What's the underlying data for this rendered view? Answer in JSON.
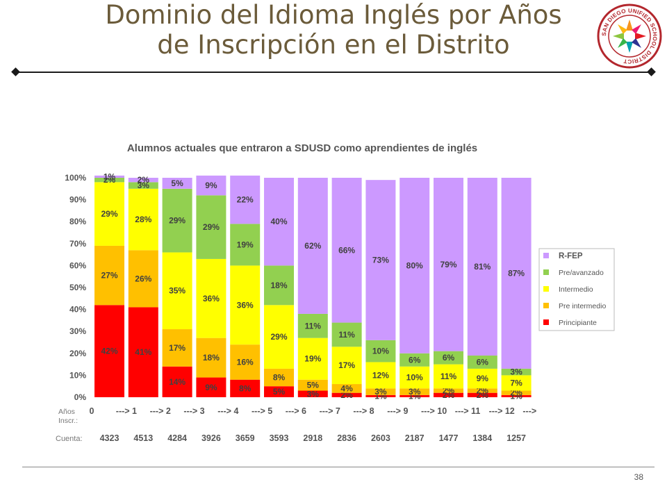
{
  "slide": {
    "title_line1": "Dominio del Idioma Inglés por Años",
    "title_line2": "de Inscripción en el Distrito",
    "page_number": "38",
    "logo_text": "SAN DIEGO UNIFIED SCHOOL DISTRICT"
  },
  "colors": {
    "title": "#6b5b3a",
    "principiante": "#ff0000",
    "pre_intermedio": "#ffc000",
    "intermedio": "#ffff00",
    "pre_avanzado": "#92d050",
    "rfep": "#cc99ff"
  },
  "chart_data": {
    "type": "bar",
    "stacked": true,
    "title": "Alumnos actuales que entraron a SDUSD como aprendientes de inglés",
    "ylim": [
      0,
      100
    ],
    "y_ticks": [
      "0%",
      "10%",
      "20%",
      "30%",
      "40%",
      "50%",
      "60%",
      "70%",
      "80%",
      "90%",
      "100%"
    ],
    "x_row_label": "Años Inscr.:",
    "x_tick_labels": [
      "0",
      "---> 1",
      "---> 2",
      "---> 3",
      "---> 4",
      "---> 5",
      "---> 6",
      "---> 7",
      "---> 8",
      "---> 9",
      "---> 10",
      "---> 11",
      "---> 12",
      "--->"
    ],
    "count_label": "Cuenta:",
    "counts": [
      "4323",
      "4513",
      "4284",
      "3926",
      "3659",
      "3593",
      "2918",
      "2836",
      "2603",
      "2187",
      "1477",
      "1384",
      "1257"
    ],
    "series": [
      {
        "name": "Principiante",
        "color": "#ff0000",
        "values": [
          42,
          41,
          14,
          9,
          8,
          5,
          3,
          2,
          1,
          1,
          2,
          2,
          1
        ]
      },
      {
        "name": "Pre intermedio",
        "color": "#ffc000",
        "values": [
          27,
          26,
          17,
          18,
          16,
          8,
          5,
          4,
          3,
          3,
          2,
          2,
          2
        ]
      },
      {
        "name": "Intermedio",
        "color": "#ffff00",
        "values": [
          29,
          28,
          35,
          36,
          36,
          29,
          19,
          17,
          12,
          10,
          11,
          9,
          7
        ]
      },
      {
        "name": "Pre/avanzado",
        "color": "#92d050",
        "values": [
          2,
          3,
          29,
          29,
          19,
          18,
          11,
          11,
          10,
          6,
          6,
          6,
          3
        ]
      },
      {
        "name": "R-FEP",
        "color": "#cc99ff",
        "values": [
          1,
          2,
          5,
          9,
          22,
          40,
          62,
          66,
          73,
          80,
          79,
          81,
          87
        ]
      }
    ],
    "legend_position": "right"
  }
}
